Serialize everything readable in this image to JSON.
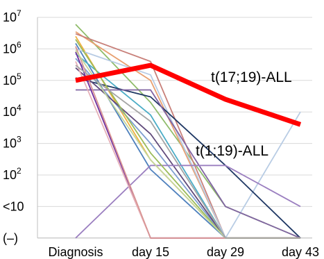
{
  "chart_data": {
    "type": "line",
    "title": "",
    "xlabel": "",
    "ylabel": "",
    "categories": [
      "Diagnosis",
      "day 15",
      "day 29",
      "day 43"
    ],
    "y_axis": {
      "scale": "log-like ordinal",
      "tick_labels": [
        {
          "base": "10",
          "exp": "7"
        },
        {
          "base": "10",
          "exp": "6"
        },
        {
          "base": "10",
          "exp": "5"
        },
        {
          "base": "10",
          "exp": "4"
        },
        {
          "base": "10",
          "exp": "3"
        },
        {
          "base": "10",
          "exp": "2"
        },
        {
          "base": "<10",
          "exp": ""
        },
        {
          "base": "(–)",
          "exp": ""
        }
      ]
    },
    "grid": "horizontal",
    "annotations": [
      {
        "text": "t(17;19)-ALL",
        "points_to": "highlight-series"
      },
      {
        "text": "t(1;19)-ALL",
        "points_to": "background-series"
      }
    ],
    "highlight_series": {
      "color": "#ff0000",
      "values": [
        100000,
        300000,
        25000,
        4000
      ]
    },
    "background_series": [
      {
        "color": "#8fbc6a",
        "values": [
          6000000,
          20000,
          10,
          0
        ]
      },
      {
        "color": "#e8a070",
        "values": [
          3500000,
          100000,
          0,
          0
        ]
      },
      {
        "color": "#c8807a",
        "values": [
          3000000,
          400000,
          0,
          0
        ]
      },
      {
        "color": "#f0b040",
        "values": [
          2500000,
          300,
          0,
          0
        ]
      },
      {
        "color": "#4f81bd",
        "values": [
          1500000,
          150,
          0,
          0
        ]
      },
      {
        "color": "#b8cce4",
        "values": [
          1000000,
          150000,
          0,
          10000
        ]
      },
      {
        "color": "#4bacc6",
        "values": [
          700000,
          8000,
          0,
          0
        ]
      },
      {
        "color": "#7f9fd0",
        "values": [
          500000,
          1000,
          0,
          0
        ]
      },
      {
        "color": "#1f3864",
        "values": [
          120000,
          30000,
          200,
          0
        ]
      },
      {
        "color": "#8064a2",
        "values": [
          50000,
          50000,
          10,
          0
        ]
      },
      {
        "color": "#604a7b",
        "values": [
          250000,
          2000,
          0,
          0
        ]
      },
      {
        "color": "#7030a0",
        "values": [
          800000,
          0,
          0,
          0
        ]
      },
      {
        "color": "#9b7fc0",
        "values": [
          0,
          200,
          200,
          35
        ]
      },
      {
        "color": "#e6b0b8",
        "values": [
          400000,
          0,
          0,
          0
        ]
      },
      {
        "color": "#9bbb59",
        "values": [
          2000000,
          500,
          0,
          0
        ]
      },
      {
        "color": "#d99694",
        "values": [
          1200000,
          0,
          0,
          0
        ]
      },
      {
        "color": "#c3d69b",
        "values": [
          900000,
          300,
          0,
          0
        ]
      },
      {
        "color": "#a5a5a5",
        "values": [
          300000,
          5000,
          0,
          0
        ]
      }
    ]
  }
}
